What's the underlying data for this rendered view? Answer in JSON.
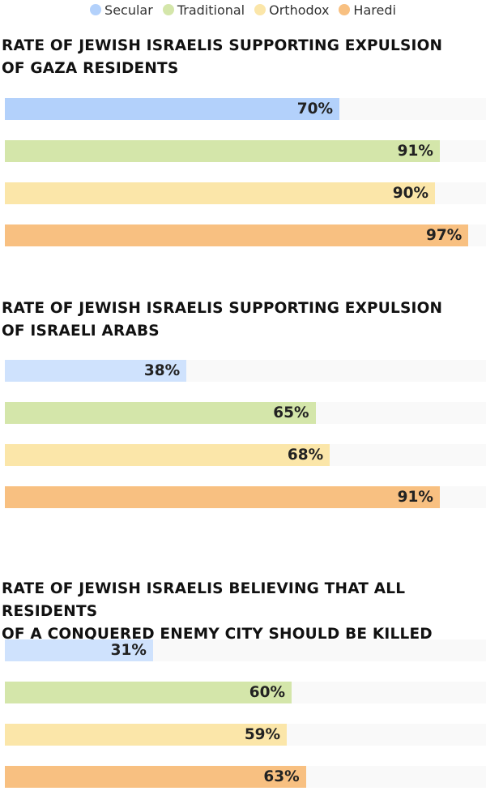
{
  "chart_data": {
    "type": "bar",
    "orientation": "horizontal",
    "legend": {
      "placement": "top-center",
      "entries": [
        "Secular",
        "Traditional",
        "Orthodox",
        "Haredi"
      ]
    },
    "colors": {
      "Secular": "#b3d1fb",
      "Traditional": "#d4e6aa",
      "Orthodox": "#fbe6a9",
      "Haredi": "#f8c081"
    },
    "xlim": [
      0,
      100
    ],
    "value_suffix": "%",
    "charts": [
      {
        "title": "RATE OF JEWISH ISRAELIS SUPPORTING EXPULSION OF GAZA RESIDENTS",
        "title_lines": [
          "RATE OF JEWISH ISRAELIS SUPPORTING EXPULSION",
          "OF GAZA RESIDENTS"
        ],
        "categories": [
          "Secular",
          "Traditional",
          "Orthodox",
          "Haredi"
        ],
        "values": [
          70,
          91,
          90,
          97
        ],
        "labels": [
          "70%",
          "91%",
          "90%",
          "97%"
        ],
        "secular_color": "#b3d1fb"
      },
      {
        "title": "RATE OF JEWISH ISRAELIS SUPPORTING EXPULSION OF ISRAELI ARABS",
        "title_lines": [
          "RATE OF JEWISH ISRAELIS SUPPORTING EXPULSION",
          "OF ISRAELI ARABS"
        ],
        "categories": [
          "Secular",
          "Traditional",
          "Orthodox",
          "Haredi"
        ],
        "values": [
          38,
          65,
          68,
          91
        ],
        "labels": [
          "38%",
          "65%",
          "68%",
          "91%"
        ],
        "secular_color": "#cfe2fd"
      },
      {
        "title": "RATE OF JEWISH ISRAELIS BELIEVING THAT ALL RESIDENTS OF A CONQUERED ENEMY CITY SHOULD BE KILLED",
        "title_lines": [
          "RATE OF JEWISH ISRAELIS BELIEVING THAT ALL RESIDENTS",
          "OF A CONQUERED ENEMY CITY SHOULD BE KILLED"
        ],
        "categories": [
          "Secular",
          "Traditional",
          "Orthodox",
          "Haredi"
        ],
        "values": [
          31,
          60,
          59,
          63
        ],
        "labels": [
          "31%",
          "60%",
          "59%",
          "63%"
        ],
        "secular_color": "#cfe2fd"
      }
    ]
  }
}
